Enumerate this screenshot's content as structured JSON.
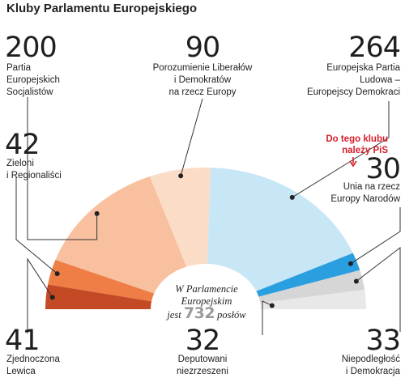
{
  "title": "Kluby Parlamentu Europejskiego",
  "chart_data": {
    "type": "pie",
    "title": "Kluby Parlamentu Europejskiego",
    "categories": [
      "Zjednoczona Lewica",
      "Zieloni i Regionaliści",
      "Partia Europejskich Socjalistów",
      "Porozumienie Liberałów i Demokratów na rzecz Europy",
      "Europejska Partia Ludowa – Europejscy Demokraci",
      "Unia na rzecz Europy Narodów",
      "Niepodległość i Demokracja",
      "Deputowani niezrzeszeni"
    ],
    "values": [
      41,
      42,
      200,
      90,
      264,
      30,
      33,
      32
    ],
    "colors": [
      "#c44a26",
      "#ee7e45",
      "#f8c09e",
      "#fbdcc6",
      "#c7e6f6",
      "#2a9fe0",
      "#d6d6d6",
      "#e8e8e8"
    ],
    "slices": [
      {
        "value": "41",
        "label": "Zjednoczona\nLewica"
      },
      {
        "value": "42",
        "label": "Zieloni\ni Regionaliści"
      },
      {
        "value": "200",
        "label": "Partia\nEuropejskich\nSocjalistów"
      },
      {
        "value": "90",
        "label": "Porozumienie Liberałów\ni Demokratów\nna rzecz Europy"
      },
      {
        "value": "264",
        "label": "Europejska Partia\nLudowa –\nEuropejscy Demokraci"
      },
      {
        "value": "30",
        "label": "Unia na rzecz\nEuropy Narodów"
      },
      {
        "value": "33",
        "label": "Niepodległość\ni Demokracja"
      },
      {
        "value": "32",
        "label": "Deputowani\nniezrzeszeni"
      }
    ],
    "note": "Do tego klubu\nnależy PiS",
    "center": {
      "pre": "W Parlamencie",
      "mid": "Europejskim",
      "jest": "jest",
      "total": "732",
      "post": "posłów"
    }
  }
}
